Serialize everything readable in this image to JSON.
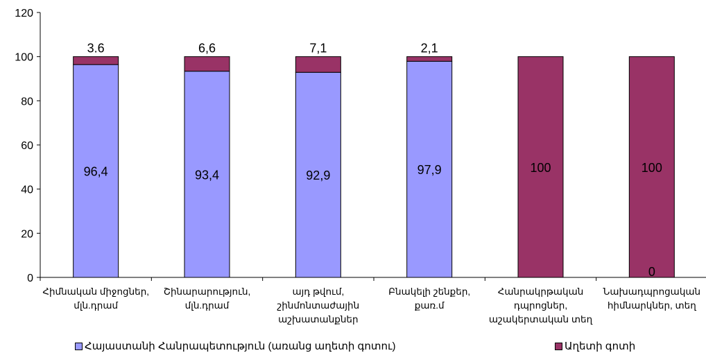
{
  "chart_data": {
    "type": "bar",
    "stacked": true,
    "categories": [
      [
        "Հիմնական միջոցներ,",
        "մլն.դրամ"
      ],
      [
        "Շինարարություն,",
        "մլն.դրամ"
      ],
      [
        "այդ թվում,",
        "շինմոնտաժային",
        "աշխատանքներ"
      ],
      [
        "Բնակելի շենքեր,",
        "քառ.մ"
      ],
      [
        "Հանրակրթական",
        "դպրոցներ,",
        "աշակերտական տեղ"
      ],
      [
        "Նախադպրոցական",
        "հիմնարկներ, տեղ"
      ]
    ],
    "series": [
      {
        "name": "Հայաստանի Հանրապետություն (առանց աղետի գոտու)",
        "color": "#9999ff",
        "values": [
          96.4,
          93.4,
          92.9,
          97.9,
          0,
          0
        ],
        "labels": [
          "96,4",
          "93,4",
          "92,9",
          "97,9",
          "",
          "0"
        ]
      },
      {
        "name": "Աղետի գոտի",
        "color": "#993366",
        "values": [
          3.6,
          6.6,
          7.1,
          2.1,
          100,
          100
        ],
        "labels": [
          "3.6",
          "6,6",
          "7,1",
          "2,1",
          "100",
          "100"
        ]
      }
    ],
    "yticks": [
      "0",
      "20",
      "40",
      "60",
      "80",
      "100",
      "120"
    ],
    "ylim": [
      0,
      120
    ],
    "grid": false,
    "legend_position": "bottom"
  }
}
